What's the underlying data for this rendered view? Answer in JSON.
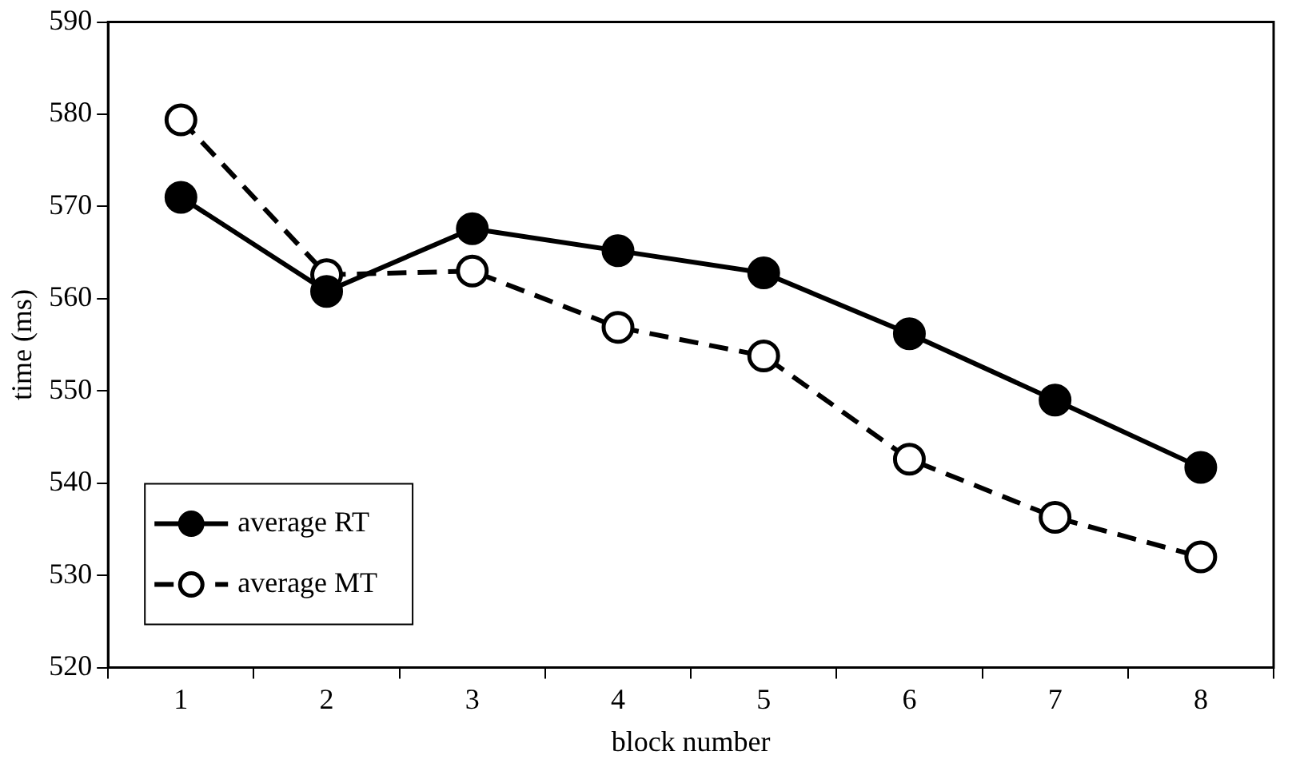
{
  "chart_data": {
    "type": "line",
    "xlabel": "block number",
    "ylabel": "time (ms)",
    "categories": [
      "1",
      "2",
      "3",
      "4",
      "5",
      "6",
      "7",
      "8"
    ],
    "series": [
      {
        "name": "average RT",
        "color": "#000000",
        "marker": "circle",
        "line_style": "solid",
        "values": [
          571,
          560.8,
          567.6,
          565.2,
          562.8,
          556.2,
          549,
          541.7
        ]
      },
      {
        "name": "average MT",
        "color": "#000000",
        "marker": "open circle",
        "line_style": "dashed",
        "values": [
          579.4,
          562.6,
          563,
          556.9,
          553.8,
          542.6,
          536.3,
          532
        ]
      }
    ],
    "ylim": [
      520,
      590
    ],
    "yticks": [
      520,
      530,
      540,
      550,
      560,
      570,
      580,
      590
    ],
    "grid": false,
    "legend": "bottom left"
  }
}
